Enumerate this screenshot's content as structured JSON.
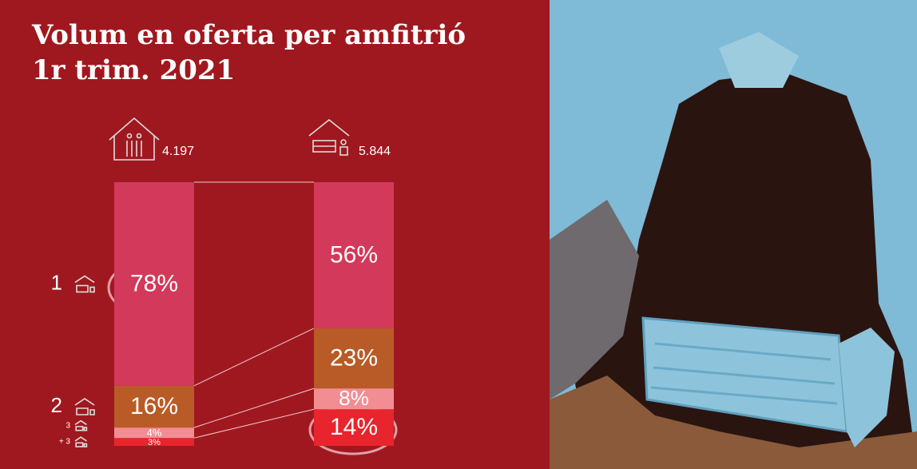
{
  "chart_data": {
    "type": "stacked_bar",
    "title": [
      "Volum en oferta per amfitrió",
      "1r trim. 2021"
    ],
    "categories": [
      "4.197",
      "5.844"
    ],
    "series": [
      {
        "name": "1",
        "color": "#d3395a",
        "values": [
          78,
          56
        ],
        "value_labels": [
          "78%",
          "56%"
        ]
      },
      {
        "name": "2",
        "color": "#b95b27",
        "values": [
          16,
          23
        ],
        "value_labels": [
          "16%",
          "23%"
        ]
      },
      {
        "name": "3",
        "color": "#f28d93",
        "values": [
          4,
          8
        ],
        "value_labels": [
          "4%",
          "8%"
        ]
      },
      {
        "name": "+ 3",
        "color": "#e8242c",
        "values": [
          3,
          14
        ],
        "value_labels": [
          "3%",
          "14%"
        ]
      }
    ]
  }
}
